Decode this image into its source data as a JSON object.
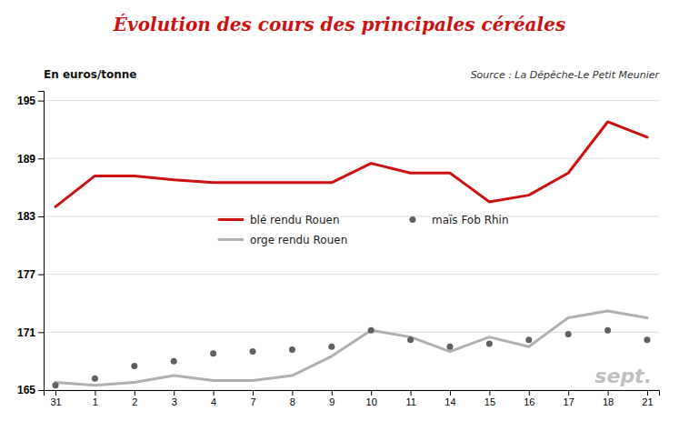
{
  "chart_data": {
    "type": "line",
    "title": "Évolution des cours des principales céréales",
    "y_label": "En euros/tonne",
    "annotations": [
      "Source : La Dêpêche-Le Petit Meunier",
      "sept."
    ],
    "categories": [
      "31",
      "1",
      "2",
      "3",
      "4",
      "7",
      "8",
      "9",
      "10",
      "11",
      "14",
      "15",
      "16",
      "17",
      "18",
      "21"
    ],
    "series": [
      {
        "name": "blé rendu Rouen",
        "color": "#cc1111",
        "line_style": "solid",
        "marker": "none",
        "values": [
          184.0,
          187.2,
          187.2,
          186.8,
          186.5,
          186.5,
          186.5,
          186.5,
          188.5,
          187.5,
          187.5,
          184.5,
          185.2,
          187.5,
          192.8,
          191.2
        ]
      },
      {
        "name": "orge rendu Rouen",
        "color": "#b0b0b0",
        "line_style": "solid",
        "marker": "none",
        "values": [
          165.8,
          165.5,
          165.8,
          166.5,
          166.0,
          166.0,
          166.5,
          168.5,
          171.2,
          170.5,
          169.0,
          170.5,
          169.5,
          172.5,
          173.2,
          172.5
        ]
      },
      {
        "name": "maïs Fob Rhin",
        "color": "#606060",
        "line_style": "none",
        "marker": "circle",
        "values": [
          165.5,
          166.2,
          167.5,
          168.0,
          168.8,
          169.0,
          169.2,
          169.5,
          171.2,
          170.2,
          169.5,
          169.8,
          170.2,
          170.8,
          171.2,
          170.2
        ]
      }
    ],
    "ylim": [
      165,
      196
    ],
    "yticks": [
      165,
      171,
      177,
      183,
      189,
      195
    ],
    "grid": true,
    "legend": "center"
  }
}
